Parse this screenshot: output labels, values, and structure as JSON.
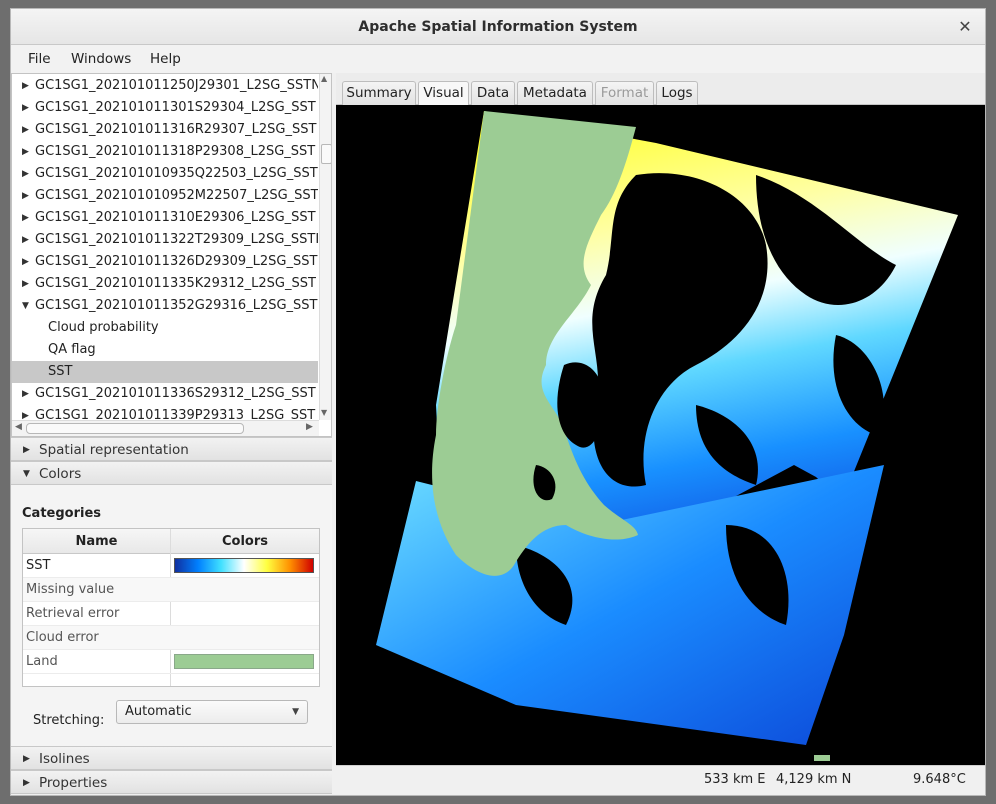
{
  "window": {
    "title": "Apache Spatial Information System"
  },
  "menu": [
    "File",
    "Windows",
    "Help"
  ],
  "tree": {
    "items": [
      {
        "label": "GC1SG1_202101011250J29301_L2SG_SSTN",
        "expanded": false
      },
      {
        "label": "GC1SG1_202101011301S29304_L2SG_SST",
        "expanded": false
      },
      {
        "label": "GC1SG1_202101011316R29307_L2SG_SST",
        "expanded": false
      },
      {
        "label": "GC1SG1_202101011318P29308_L2SG_SST",
        "expanded": false
      },
      {
        "label": "GC1SG1_202101010935Q22503_L2SG_SST",
        "expanded": false
      },
      {
        "label": "GC1SG1_202101010952M22507_L2SG_SST",
        "expanded": false
      },
      {
        "label": "GC1SG1_202101011310E29306_L2SG_SST",
        "expanded": false
      },
      {
        "label": "GC1SG1_202101011322T29309_L2SG_SSTI",
        "expanded": false
      },
      {
        "label": "GC1SG1_202101011326D29309_L2SG_SST",
        "expanded": false
      },
      {
        "label": "GC1SG1_202101011335K29312_L2SG_SST",
        "expanded": false
      },
      {
        "label": "GC1SG1_202101011352G29316_L2SG_SST",
        "expanded": true,
        "children": [
          "Cloud probability",
          "QA flag",
          "SST"
        ],
        "selected_child": "SST"
      },
      {
        "label": "GC1SG1_202101011336S29312_L2SG_SST",
        "expanded": false
      },
      {
        "label": "GC1SG1_202101011339P29313_L2SG_SST",
        "expanded": false
      }
    ]
  },
  "panels": {
    "spatial": "Spatial representation",
    "colors": "Colors",
    "isolines": "Isolines",
    "properties": "Properties"
  },
  "categories": {
    "title": "Categories",
    "col_name": "Name",
    "col_colors": "Colors",
    "rows": [
      {
        "name": "SST",
        "swatch": "gradient"
      },
      {
        "name": "Missing value",
        "swatch": ""
      },
      {
        "name": "Retrieval error",
        "swatch": ""
      },
      {
        "name": "Cloud error",
        "swatch": ""
      },
      {
        "name": "Land",
        "swatch": "#9ccc94"
      }
    ]
  },
  "stretching": {
    "label": "Stretching:",
    "value": "Automatic"
  },
  "tabs": [
    {
      "label": "Summary",
      "active": false,
      "enabled": true
    },
    {
      "label": "Visual",
      "active": true,
      "enabled": true
    },
    {
      "label": "Data",
      "active": false,
      "enabled": true
    },
    {
      "label": "Metadata",
      "active": false,
      "enabled": true
    },
    {
      "label": "Format",
      "active": false,
      "enabled": false
    },
    {
      "label": "Logs",
      "active": false,
      "enabled": true
    }
  ],
  "status": {
    "easting": "533 km E",
    "northing": "4,129 km N",
    "value": "9.648°C"
  },
  "colors": {
    "land": "#9ccc94",
    "selection": "#c8c8c8",
    "background": "#000000"
  }
}
